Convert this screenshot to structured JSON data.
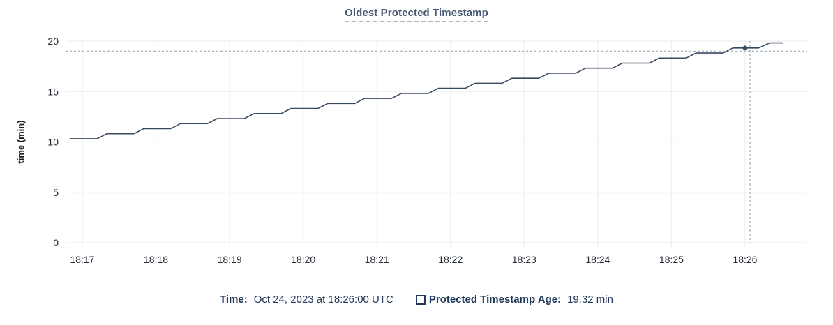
{
  "chart_data": {
    "type": "line",
    "title": "Oldest Protected Timestamp",
    "xlabel": "",
    "ylabel": "time (min)",
    "ylim": [
      0,
      20
    ],
    "yticks": [
      0,
      5,
      10,
      15,
      20
    ],
    "xticks": [
      "18:17",
      "18:18",
      "18:19",
      "18:20",
      "18:21",
      "18:22",
      "18:23",
      "18:24",
      "18:25",
      "18:26"
    ],
    "x_tick_interval_seconds": 60,
    "x_domain_seconds_from_first_tick": [
      -10,
      591
    ],
    "grid": true,
    "legend_position": "bottom",
    "series": [
      {
        "name": "Protected Timestamp Age",
        "units": "min",
        "points": [
          [
            -10,
            10.32
          ],
          [
            12,
            10.32
          ],
          [
            20,
            10.82
          ],
          [
            42,
            10.82
          ],
          [
            50,
            11.32
          ],
          [
            72,
            11.32
          ],
          [
            80,
            11.82
          ],
          [
            102,
            11.82
          ],
          [
            110,
            12.32
          ],
          [
            132,
            12.32
          ],
          [
            140,
            12.82
          ],
          [
            162,
            12.82
          ],
          [
            170,
            13.32
          ],
          [
            192,
            13.32
          ],
          [
            200,
            13.82
          ],
          [
            222,
            13.82
          ],
          [
            230,
            14.32
          ],
          [
            252,
            14.32
          ],
          [
            260,
            14.82
          ],
          [
            282,
            14.82
          ],
          [
            290,
            15.32
          ],
          [
            312,
            15.32
          ],
          [
            320,
            15.82
          ],
          [
            342,
            15.82
          ],
          [
            350,
            16.32
          ],
          [
            372,
            16.32
          ],
          [
            380,
            16.82
          ],
          [
            402,
            16.82
          ],
          [
            410,
            17.32
          ],
          [
            432,
            17.32
          ],
          [
            440,
            17.82
          ],
          [
            462,
            17.82
          ],
          [
            470,
            18.32
          ],
          [
            492,
            18.32
          ],
          [
            500,
            18.82
          ],
          [
            522,
            18.82
          ],
          [
            530,
            19.32
          ],
          [
            551,
            19.32
          ],
          [
            560,
            19.82
          ],
          [
            571,
            19.82
          ]
        ]
      }
    ],
    "hover": {
      "dot_time": "18:26:00",
      "dot_t_seconds": 540,
      "dot_value": 19.32,
      "crosshair_t_seconds": 544,
      "crosshair_value": 19.0
    }
  },
  "legend": {
    "time_label": "Time:",
    "time_value": "Oct 24, 2023 at 18:26:00 UTC",
    "series_label": "Protected Timestamp Age:",
    "series_value": "19.32 min"
  },
  "colors": {
    "line": "#394a61",
    "dot": "#394a61",
    "crosshair": "#a9b8c6",
    "grid": "#efefef",
    "title": "#475872",
    "title_underline": "#aab6c5",
    "tick_label": "#242a35",
    "axis_label": "#16181d",
    "legend_text": "#21395a"
  }
}
